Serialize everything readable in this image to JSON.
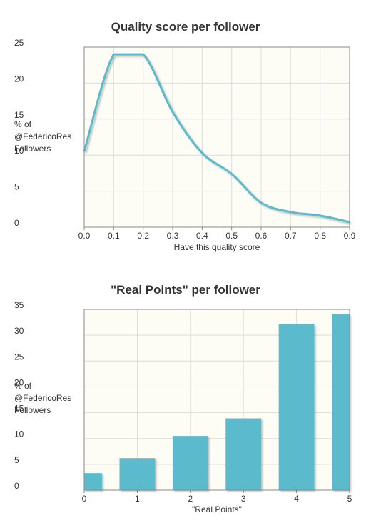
{
  "colors": {
    "series": "#5bbacd",
    "plot_bg": "#fdfdf6",
    "grid": "#dddddd",
    "axis": "#888888",
    "text": "#333333"
  },
  "chart_data": [
    {
      "type": "line",
      "title": "Quality score per follower",
      "xlabel": "Have this quality score",
      "ylabel_lines": [
        "% of",
        "@FedericoRes",
        "Followers"
      ],
      "xlim": [
        0,
        0.9
      ],
      "ylim": [
        0,
        25
      ],
      "xticks": [
        "0.0",
        "0.1",
        "0.2",
        "0.3",
        "0.4",
        "0.5",
        "0.6",
        "0.7",
        "0.8",
        "0.9"
      ],
      "yticks": [
        "0",
        "5",
        "10",
        "15",
        "20",
        "25"
      ],
      "grid": true,
      "x": [
        0.0,
        0.1,
        0.2,
        0.3,
        0.4,
        0.5,
        0.6,
        0.7,
        0.8,
        0.9
      ],
      "y": [
        10.5,
        24,
        24,
        16,
        10.3,
        7.4,
        3.4,
        2.1,
        1.6,
        0.7
      ]
    },
    {
      "type": "bar",
      "title": "\"Real Points\" per follower",
      "xlabel": "\"Real Points\"",
      "ylabel_lines": [
        "% of",
        "@FedericoRes",
        "Followers"
      ],
      "xlim": [
        0,
        5
      ],
      "ylim": [
        0,
        35
      ],
      "xticks": [
        "0",
        "1",
        "2",
        "3",
        "4",
        "5"
      ],
      "yticks": [
        "0",
        "5",
        "10",
        "15",
        "20",
        "25",
        "30",
        "35"
      ],
      "grid": true,
      "x": [
        0,
        1,
        2,
        3,
        4,
        5
      ],
      "values": [
        3.3,
        6.2,
        10.5,
        13.9,
        32.1,
        34.1
      ]
    }
  ]
}
